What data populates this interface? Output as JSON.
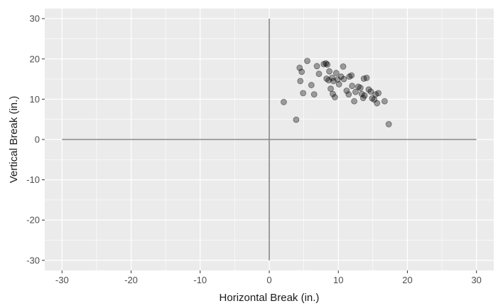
{
  "chart_data": {
    "type": "scatter",
    "xlabel": "Horizontal Break (in.)",
    "ylabel": "Vertical Break (in.)",
    "xlim": [
      -32.5,
      32.5
    ],
    "ylim": [
      -32.5,
      32.5
    ],
    "x_ticks": [
      -30,
      -20,
      -10,
      0,
      10,
      20,
      30
    ],
    "y_ticks": [
      30,
      20,
      10,
      0,
      -10,
      -20,
      -30
    ],
    "x_tick_labels": [
      "-30",
      "-20",
      "-10",
      "0",
      "10",
      "20",
      "30"
    ],
    "y_tick_labels": [
      "30",
      "20",
      "10",
      "0",
      "-10",
      "-20",
      "-30"
    ],
    "grid": true,
    "reference_lines": [
      {
        "orientation": "horizontal",
        "at": 0,
        "from": -30,
        "to": 30
      },
      {
        "orientation": "vertical",
        "at": 0,
        "from": -30,
        "to": 30
      }
    ],
    "colors": {
      "panel": "#ebebeb",
      "grid": "#ffffff",
      "reference_line": "#888888",
      "point": "#000000"
    },
    "points": [
      [
        2.1,
        9.3
      ],
      [
        3.9,
        4.9
      ],
      [
        4.4,
        17.8
      ],
      [
        4.5,
        14.5
      ],
      [
        4.7,
        16.8
      ],
      [
        4.9,
        11.5
      ],
      [
        5.5,
        19.5
      ],
      [
        6.1,
        13.5
      ],
      [
        6.5,
        11.2
      ],
      [
        6.9,
        18.2
      ],
      [
        7.2,
        16.3
      ],
      [
        7.9,
        18.7
      ],
      [
        8.2,
        18.9
      ],
      [
        8.4,
        18.6
      ],
      [
        8.3,
        15.1
      ],
      [
        8.6,
        14.7
      ],
      [
        8.7,
        16.9
      ],
      [
        8.9,
        12.6
      ],
      [
        9.1,
        15.3
      ],
      [
        9.3,
        14.5
      ],
      [
        9.2,
        11.3
      ],
      [
        9.5,
        10.5
      ],
      [
        9.7,
        16.5
      ],
      [
        9.9,
        14.9
      ],
      [
        10.1,
        13.7
      ],
      [
        10.4,
        15.6
      ],
      [
        10.7,
        18.1
      ],
      [
        10.8,
        15.0
      ],
      [
        11.2,
        12.1
      ],
      [
        11.5,
        11.2
      ],
      [
        11.6,
        15.6
      ],
      [
        11.9,
        15.9
      ],
      [
        12.0,
        13.3
      ],
      [
        12.3,
        9.5
      ],
      [
        12.5,
        11.8
      ],
      [
        12.9,
        13.1
      ],
      [
        13.2,
        12.8
      ],
      [
        13.4,
        11.3
      ],
      [
        13.6,
        10.3
      ],
      [
        13.7,
        15.1
      ],
      [
        13.8,
        10.9
      ],
      [
        14.1,
        15.3
      ],
      [
        14.4,
        12.4
      ],
      [
        14.7,
        11.9
      ],
      [
        14.9,
        10.2
      ],
      [
        15.2,
        9.9
      ],
      [
        15.4,
        11.2
      ],
      [
        15.6,
        9.0
      ],
      [
        15.8,
        11.5
      ],
      [
        16.7,
        9.5
      ],
      [
        17.3,
        3.8
      ]
    ]
  }
}
